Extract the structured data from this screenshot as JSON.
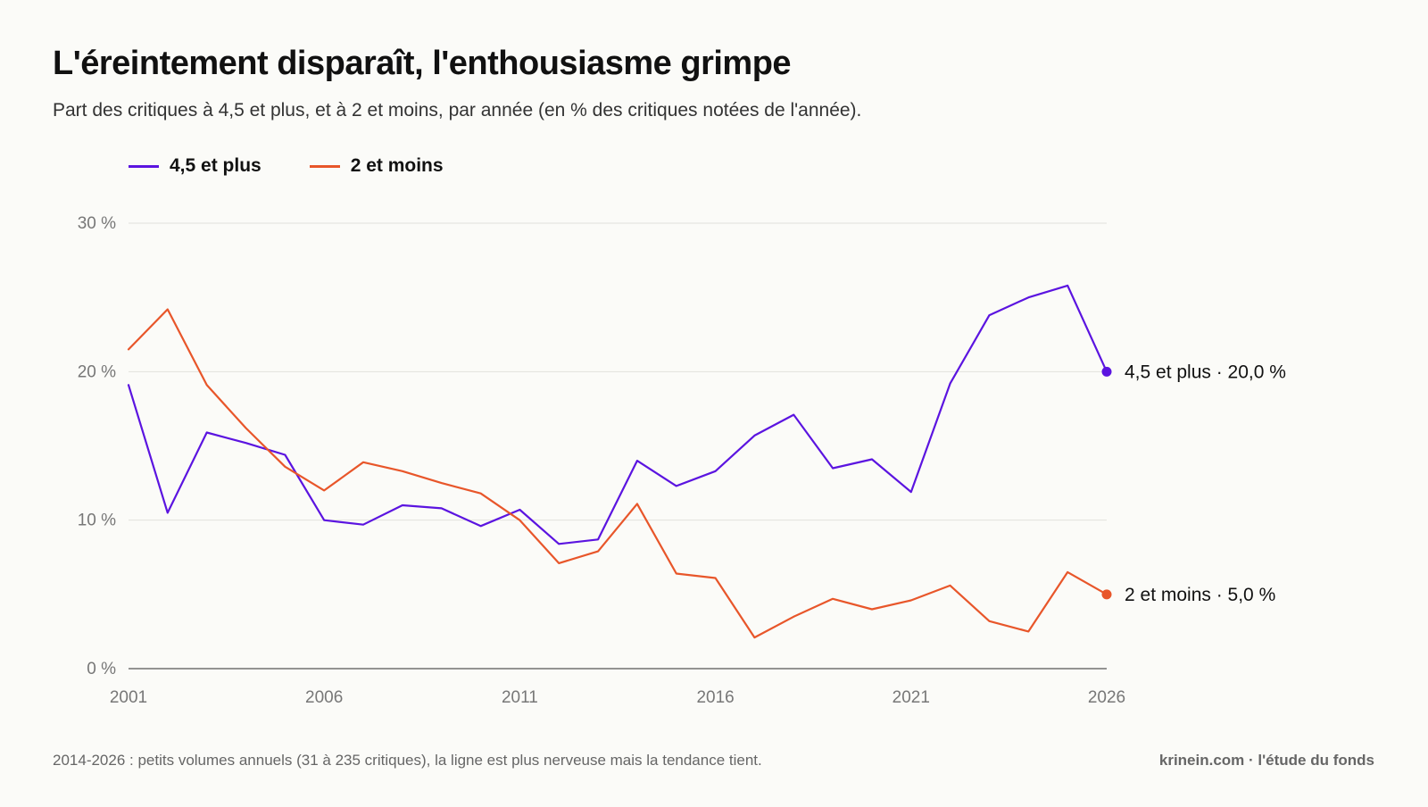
{
  "title": "L'éreintement disparaît, l'enthousiasme grimpe",
  "subtitle": "Part des critiques à 4,5 et plus, et à 2 et moins, par année (en % des critiques notées de l'année).",
  "footnote": "2014-2026 : petits volumes annuels (31 à 235 critiques), la ligne est plus nerveuse mais la tendance tient.",
  "credit": "krinein.com · l'étude du fonds",
  "colors": {
    "high": "#5b14e0",
    "low": "#e8562a",
    "grid": "#e2e2dc",
    "axis": "#555555"
  },
  "chart_data": {
    "type": "line",
    "title": "L'éreintement disparaît, l'enthousiasme grimpe",
    "xlabel": "",
    "ylabel": "",
    "x": [
      2001,
      2002,
      2003,
      2004,
      2005,
      2006,
      2007,
      2008,
      2009,
      2010,
      2011,
      2012,
      2013,
      2014,
      2015,
      2016,
      2017,
      2018,
      2019,
      2020,
      2021,
      2022,
      2023,
      2024,
      2025,
      2026
    ],
    "xlim": [
      2001,
      2026
    ],
    "ylim": [
      0,
      30
    ],
    "x_ticks": [
      {
        "value": 2001,
        "label": "2001"
      },
      {
        "value": 2006,
        "label": "2006"
      },
      {
        "value": 2011,
        "label": "2011"
      },
      {
        "value": 2016,
        "label": "2016"
      },
      {
        "value": 2021,
        "label": "2021"
      },
      {
        "value": 2026,
        "label": "2026"
      }
    ],
    "y_ticks": [
      {
        "value": 0,
        "label": "0 %"
      },
      {
        "value": 10,
        "label": "10 %"
      },
      {
        "value": 20,
        "label": "20 %"
      },
      {
        "value": 30,
        "label": "30 %"
      }
    ],
    "grid": true,
    "legend_position": "top-left",
    "series": [
      {
        "name": "4,5 et plus",
        "color": "#5b14e0",
        "end_label": "4,5 et plus · 20,0 %",
        "values": [
          19.1,
          10.5,
          15.9,
          15.2,
          14.4,
          10.0,
          9.7,
          11.0,
          10.8,
          9.6,
          10.7,
          8.4,
          8.7,
          14.0,
          12.3,
          13.3,
          15.7,
          17.1,
          13.5,
          14.1,
          11.9,
          19.2,
          23.8,
          25.0,
          25.8,
          20.0
        ]
      },
      {
        "name": "2 et moins",
        "color": "#e8562a",
        "end_label": "2 et moins · 5,0 %",
        "values": [
          21.5,
          24.2,
          19.1,
          16.2,
          13.6,
          12.0,
          13.9,
          13.3,
          12.5,
          11.8,
          10.0,
          7.1,
          7.9,
          11.1,
          6.4,
          6.1,
          2.1,
          3.5,
          4.7,
          4.0,
          4.6,
          5.6,
          3.2,
          2.5,
          6.5,
          5.0
        ]
      }
    ]
  }
}
